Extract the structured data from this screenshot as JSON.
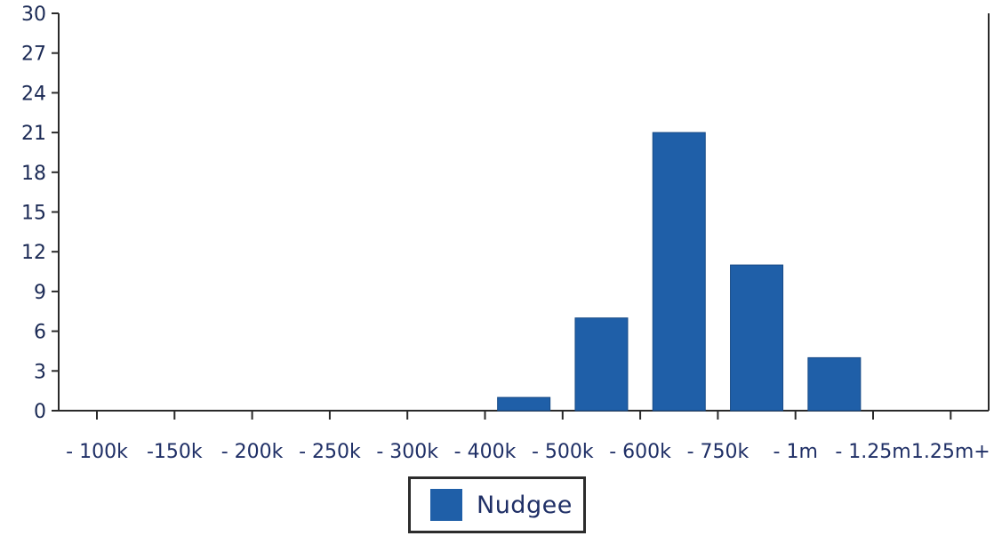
{
  "chart_data": {
    "type": "bar",
    "categories": [
      "100k",
      "150k",
      "200k",
      "250k",
      "300k",
      "400k",
      "500k",
      "600k",
      "750k",
      "1m",
      "1.25m",
      "1.25m+"
    ],
    "x_tick_labels": [
      "- 100k",
      "-150k",
      "- 200k",
      "- 250k",
      "- 300k",
      "- 400k",
      "- 500k",
      "- 600k",
      "- 750k",
      "- 1m",
      "- 1.25m",
      "1.25m+"
    ],
    "series": [
      {
        "name": "Nudgee",
        "values": [
          0,
          0,
          0,
          0,
          0,
          1,
          7,
          21,
          11,
          4,
          0,
          0
        ]
      }
    ],
    "ylim": [
      0,
      30
    ],
    "yticks": [
      0,
      3,
      6,
      9,
      12,
      15,
      18,
      21,
      24,
      27,
      30
    ],
    "title": "",
    "xlabel": "",
    "ylabel": "",
    "grid": false,
    "legend_position": "bottom-center",
    "bar_color": "#1f5fa8",
    "axis_color": "#2a2a2a"
  },
  "legend": {
    "label": "Nudgee"
  }
}
